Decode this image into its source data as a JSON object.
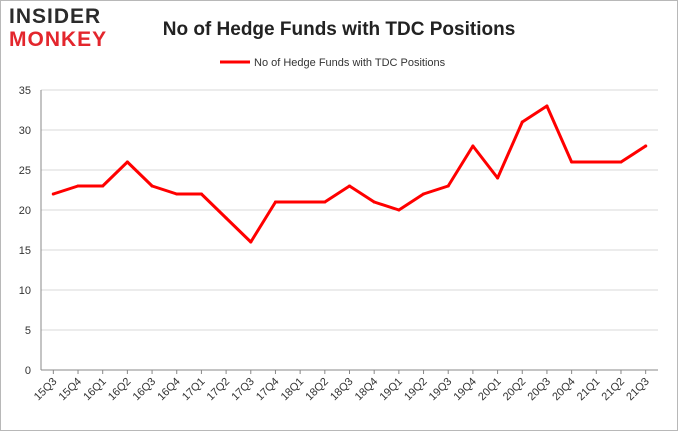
{
  "logo": {
    "line1": "INSIDER",
    "line2": "MONKEY"
  },
  "colors": {
    "series": "#ff0000",
    "grid": "#d9d9d9",
    "axis": "#888888",
    "text": "#333333"
  },
  "chart_data": {
    "type": "line",
    "title": "No of Hedge Funds with TDC Positions",
    "xlabel": "",
    "ylabel": "",
    "ylim": [
      0,
      35
    ],
    "yticks": [
      0,
      5,
      10,
      15,
      20,
      25,
      30,
      35
    ],
    "grid": true,
    "legend_position": "top-center",
    "categories": [
      "15Q3",
      "15Q4",
      "16Q1",
      "16Q2",
      "16Q3",
      "16Q4",
      "17Q1",
      "17Q2",
      "17Q3",
      "17Q4",
      "18Q1",
      "18Q2",
      "18Q3",
      "18Q4",
      "19Q1",
      "19Q2",
      "19Q3",
      "19Q4",
      "20Q1",
      "20Q2",
      "20Q3",
      "20Q4",
      "21Q1",
      "21Q2",
      "21Q3"
    ],
    "series": [
      {
        "name": "No of Hedge Funds with TDC Positions",
        "color": "#ff0000",
        "values": [
          22,
          23,
          23,
          26,
          23,
          22,
          22,
          19,
          16,
          21,
          21,
          21,
          23,
          21,
          20,
          22,
          23,
          28,
          24,
          31,
          33,
          26,
          26,
          26,
          28
        ]
      }
    ]
  }
}
